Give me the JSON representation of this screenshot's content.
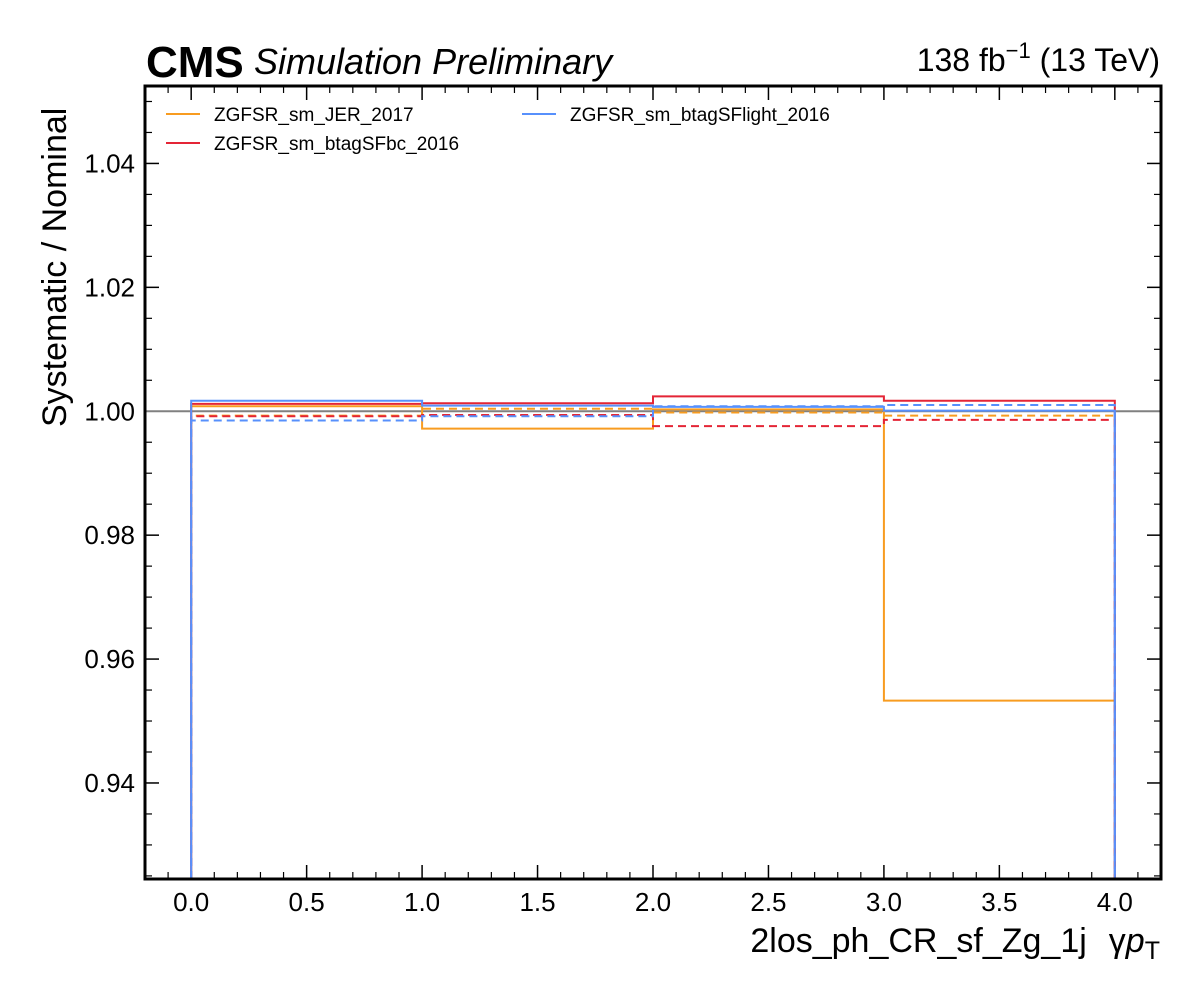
{
  "header": {
    "cms": "CMS",
    "extra": "Simulation Preliminary",
    "lumi_value": "138 fb",
    "lumi_exp": "−1",
    "lumi_energy": " (13 TeV)"
  },
  "chart_data": {
    "type": "line",
    "drawstyle": "steps",
    "xlabel_main": "2los_ph_CR_sf_Zg_1j",
    "xlabel_gamma": "γ",
    "xlabel_p": "p",
    "xlabel_sub": "T",
    "ylabel": "Systematic / Nominal",
    "xlim": [
      -0.2,
      4.2
    ],
    "ylim": [
      0.9245,
      1.0525
    ],
    "xticks": [
      0.0,
      0.5,
      1.0,
      1.5,
      2.0,
      2.5,
      3.0,
      3.5,
      4.0
    ],
    "xtick_labels": [
      "0.0",
      "0.5",
      "1.0",
      "1.5",
      "2.0",
      "2.5",
      "3.0",
      "3.5",
      "4.0"
    ],
    "yticks": [
      0.94,
      0.96,
      0.98,
      1.0,
      1.02,
      1.04
    ],
    "ytick_labels": [
      "0.94",
      "0.96",
      "0.98",
      "1.00",
      "1.02",
      "1.04"
    ],
    "bin_edges": [
      0,
      1,
      2,
      3,
      4
    ],
    "reference_line": 1.0,
    "legend_placement": "upper-left",
    "series": [
      {
        "name": "ZGFSR_sm_JER_2017",
        "color": "#f89c20",
        "up": [
          1.0008,
          0.9972,
          1.0003,
          0.9533
        ],
        "down": [
          0.9993,
          1.0004,
          0.9998,
          0.9993
        ]
      },
      {
        "name": "ZGFSR_sm_btagSFbc_2016",
        "color": "#e42536",
        "up": [
          1.0012,
          1.0013,
          1.0024,
          1.0017
        ],
        "down": [
          0.9992,
          0.9994,
          0.9976,
          0.9986
        ]
      },
      {
        "name": "ZGFSR_sm_btagSFlight_2016",
        "color": "#5790fc",
        "up": [
          1.0017,
          1.0009,
          1.0007,
          1.0001
        ],
        "down": [
          0.9985,
          0.9992,
          1.0008,
          1.001
        ]
      }
    ]
  }
}
